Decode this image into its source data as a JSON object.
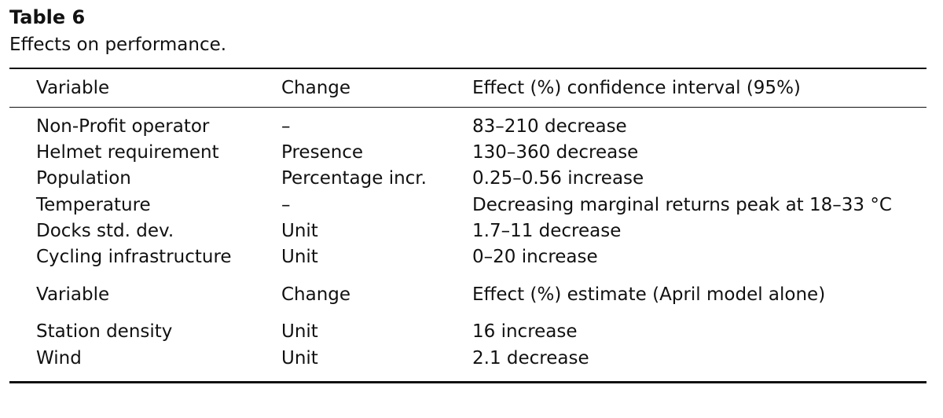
{
  "table": {
    "label": "Table 6",
    "caption": "Effects on performance.",
    "header": [
      "Variable",
      "Change",
      "Effect (%) confidence interval (95%)"
    ],
    "rows": [
      [
        "Non-Profit operator",
        "–",
        "83–210 decrease"
      ],
      [
        "Helmet requirement",
        "Presence",
        "130–360 decrease"
      ],
      [
        "Population",
        "Percentage incr.",
        "0.25–0.56 increase"
      ],
      [
        "Temperature",
        "–",
        "Decreasing marginal returns peak at 18–33 °C"
      ],
      [
        "Docks std. dev.",
        "Unit",
        "1.7–11 decrease"
      ],
      [
        "Cycling infrastructure",
        "Unit",
        "0–20 increase"
      ]
    ],
    "subheader": [
      "Variable",
      "Change",
      "Effect (%) estimate (April model alone)"
    ],
    "rows2": [
      [
        "Station density",
        "Unit",
        "16 increase"
      ],
      [
        "Wind",
        "Unit",
        "2.1 decrease"
      ]
    ]
  }
}
